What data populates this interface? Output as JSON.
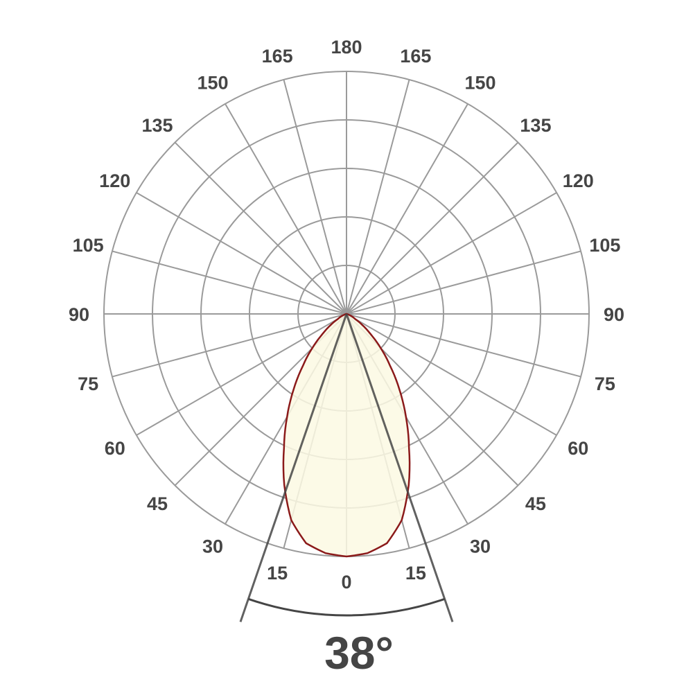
{
  "chart_data": {
    "type": "polar",
    "title": "",
    "radial_rings": 5,
    "angular_step_deg": 15,
    "grid": true,
    "angle_labels_left": [
      "0",
      "15",
      "30",
      "45",
      "60",
      "75",
      "90",
      "105",
      "120",
      "135",
      "150",
      "165",
      "180"
    ],
    "angle_labels_right": [
      "15",
      "30",
      "45",
      "60",
      "75",
      "90",
      "105",
      "120",
      "135",
      "150",
      "165"
    ],
    "series": [
      {
        "angles_deg": [
          0,
          5,
          10,
          15,
          20,
          25,
          30,
          35,
          40,
          45,
          50,
          55,
          60,
          70,
          80,
          90
        ],
        "relative_intensity_pct": [
          100,
          99,
          96,
          88,
          75,
          61,
          49,
          38,
          28,
          20,
          13,
          8,
          4,
          1,
          0,
          0
        ]
      }
    ],
    "beam_angle_deg": 38,
    "beam_angle_label": "38°",
    "colors": {
      "grid": "#9a9a9a",
      "curve": "#8b1a1a",
      "fill": "#fcf9e3",
      "beam": "#454545",
      "text": "#454545"
    }
  }
}
